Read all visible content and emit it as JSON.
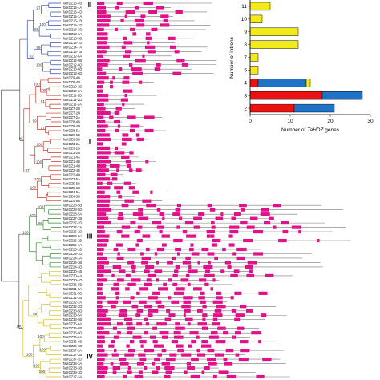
{
  "figure": {
    "group_labels": [
      "II",
      "I",
      "III",
      "IV"
    ],
    "tree_colors": {
      "group_II": "#3a4aa8",
      "group_I": "#c0392b",
      "group_III": "#3a8a3a",
      "group_IV": "#d4c020",
      "root": "#555555"
    },
    "exon_color": "#e0118a",
    "intron_color": "#777777",
    "gene_names": [
      "TaHDZ16-4B",
      "TaHDZ16-4A",
      "TaHDZ16-4D",
      "TaHDZ15-1A",
      "TaHDZ15-1B",
      "TaHDZ15-1D",
      "TaHDZ18-3D",
      "TaHDZ18-3A",
      "TaHDZ18-3B",
      "TaHDZ14-7D",
      "TaHDZ14-7A",
      "TaHDZ14-7B",
      "TaHDZ12-6A",
      "TaHDZ12-6B",
      "TaHDZ12-6D",
      "TaHDZ13-6B",
      "TaHDZ13-6D",
      "TaHDZ9-4B",
      "TaHDZ9-4D",
      "TaHDZ10-2D",
      "TaHDZ10-2A",
      "TaHDZ11-2B",
      "TaHDZ11-2D",
      "TaHDZ11-2A",
      "TaHDZ7-2D",
      "TaHDZ7-2B",
      "TaHDZ7-2A",
      "TaHDZ8-4B",
      "TaHDZ8-4D",
      "TaHDZ8-5A",
      "TaHDZ6-5B",
      "TaHDZ6-5D",
      "TaHDZ3-2A",
      "TaHDZ3-2B",
      "TaHDZ3-2D",
      "TaHDZ1-4A",
      "TaHDZ1-4B",
      "TaHDZ1-4D",
      "TaHDZ2-4B",
      "TaHDZ2-4D",
      "TaHDZ2-5A",
      "TaHDZ5-5B",
      "TaHDZ5-5D",
      "TaHDZ4-5A",
      "TaHDZ4-5B",
      "TaHDZ4-5D",
      "TaHDZ28-5B",
      "TaHDZ28-5D",
      "TaHDZ28-5A",
      "TaHDZ27-2B",
      "TaHDZ27-2D",
      "TaHDZ27-2A",
      "TaHDZ26-2D",
      "TaHDZ26-2A",
      "TaHDZ26-2B",
      "TaHDZ25-1A",
      "TaHDZ25-1B",
      "TaHDZ25-1D",
      "TaHDZ24-3A",
      "TaHDZ24-3B",
      "TaHDZ24-3D",
      "TaHDZ30-4B",
      "TaHDZ30-4A",
      "TaHDZ30-4D",
      "TaHDZ31-5B",
      "TaHDZ31-5A",
      "TaHDZ31-5D",
      "TaHDZ32-2B",
      "TaHDZ32-2A",
      "TaHDZ32-2D",
      "TaHDZ33-5D",
      "TaHDZ33-5A",
      "TaHDZ33-5B",
      "TaHDZ35-6A",
      "TaHDZ35-6B",
      "TaHDZ35-6D",
      "TaHDZ36-6A",
      "TaHDZ36-6B",
      "TaHDZ36-6D",
      "TaHDZ37-2A",
      "TaHDZ37-2B",
      "TaHDZ37-2D",
      "TaHDZ38-3A",
      "TaHDZ38-3B",
      "TaHDZ38-3D",
      "TaHDZ17-3A"
    ],
    "bootstrap_values": [
      "97",
      "100",
      "88",
      "99",
      "100",
      "62",
      "100",
      "100",
      "91",
      "77",
      "99",
      "100",
      "100",
      "100",
      "100",
      "97",
      "95",
      "100",
      "98",
      "100",
      "100",
      "55",
      "100",
      "100",
      "100",
      "100",
      "100",
      "100",
      "91",
      "100",
      "100",
      "100",
      "100",
      "100",
      "100",
      "55",
      "100",
      "100",
      "100",
      "100",
      "100",
      "93",
      "50",
      "100",
      "100",
      "100"
    ]
  },
  "chart_data": {
    "type": "bar",
    "orientation": "horizontal",
    "stacked": true,
    "categories": [
      "11",
      "10",
      "9",
      "8",
      "7",
      "5",
      "4",
      "3",
      "2"
    ],
    "series": [
      {
        "color": "#ee1111",
        "values": [
          0,
          0,
          0,
          0,
          0,
          0,
          2,
          18,
          11
        ]
      },
      {
        "color": "#1e73c8",
        "values": [
          0,
          0,
          0,
          0,
          0,
          0,
          12,
          10,
          10
        ]
      },
      {
        "color": "#f2ea1a",
        "values": [
          5,
          3,
          12,
          12,
          2,
          2,
          1,
          0,
          0
        ]
      }
    ],
    "xlabel": "Number of TaHDZ genes",
    "xlabel_parts": [
      "Number of ",
      "TaHDZ",
      " genes"
    ],
    "ylabel": "Number of introns",
    "xlim": [
      0,
      30
    ],
    "xticks": [
      "0",
      "10",
      "20",
      "30"
    ],
    "grid": false,
    "legend": "none"
  }
}
